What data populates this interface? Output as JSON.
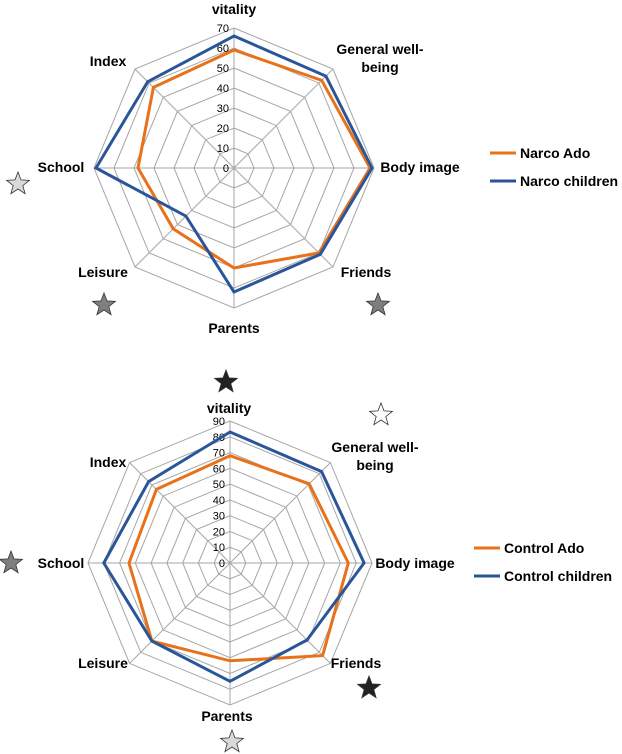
{
  "colors": {
    "orange": "#E8711A",
    "blue": "#2A5699",
    "grid": "#A6A6A6",
    "star_dark": "#222222",
    "star_mid": "#7F7F7F",
    "star_light": "#D9D9D9",
    "star_white": "#FFFFFF"
  },
  "chart_data": [
    {
      "type": "radar",
      "categories": [
        "vitality",
        "General well-being",
        "Body image",
        "Friends",
        "Parents",
        "Leisure",
        "School",
        "Index"
      ],
      "category_lines": [
        [
          "vitality"
        ],
        [
          "General well-",
          "being"
        ],
        [
          "Body image"
        ],
        [
          "Friends"
        ],
        [
          "Parents"
        ],
        [
          "Leisure"
        ],
        [
          "School"
        ],
        [
          "Index"
        ]
      ],
      "rlim": [
        0,
        70
      ],
      "ticks": [
        0,
        10,
        20,
        30,
        40,
        50,
        60,
        70
      ],
      "series": [
        {
          "name": "Narco  Ado",
          "color": "#E8711A",
          "values": [
            59,
            62,
            68,
            60,
            50,
            43,
            48,
            57
          ]
        },
        {
          "name": "Narco children",
          "color": "#2A5699",
          "values": [
            66,
            65,
            69,
            61,
            62,
            34,
            69,
            61
          ]
        }
      ],
      "stars": [
        {
          "category": "School",
          "shade": "light"
        },
        {
          "category": "Leisure",
          "shade": "mid"
        },
        {
          "category": "Friends",
          "shade": "mid"
        }
      ]
    },
    {
      "type": "radar",
      "categories": [
        "vitality",
        "General well-being",
        "Body image",
        "Friends",
        "Parents",
        "Leisure",
        "School",
        "Index"
      ],
      "category_lines": [
        [
          "vitality"
        ],
        [
          "General well-",
          "being"
        ],
        [
          "Body image"
        ],
        [
          "Friends"
        ],
        [
          "Parents"
        ],
        [
          "Leisure"
        ],
        [
          "School"
        ],
        [
          "Index"
        ]
      ],
      "rlim": [
        0,
        90
      ],
      "ticks": [
        0,
        10,
        20,
        30,
        40,
        50,
        60,
        70,
        80,
        90
      ],
      "series": [
        {
          "name": "Control Ado",
          "color": "#E8711A",
          "values": [
            68,
            71,
            75,
            83,
            62,
            70,
            64,
            66
          ]
        },
        {
          "name": "Control children",
          "color": "#2A5699",
          "values": [
            83,
            82,
            85,
            69,
            75,
            70,
            80,
            73
          ]
        }
      ],
      "stars": [
        {
          "category": "vitality",
          "shade": "dark"
        },
        {
          "category": "General well-being",
          "shade": "white"
        },
        {
          "category": "School",
          "shade": "mid"
        },
        {
          "category": "Friends",
          "shade": "dark"
        },
        {
          "category": "Parents",
          "shade": "light"
        }
      ]
    }
  ]
}
